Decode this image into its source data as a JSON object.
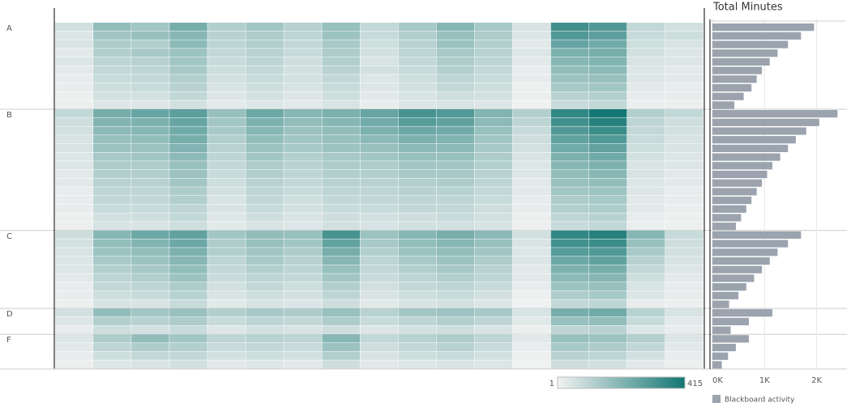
{
  "chart_data": [
    {
      "type": "heatmap",
      "colorlim": [
        1,
        415
      ],
      "colors": [
        "#f2f2f2",
        "#137773"
      ],
      "groups": [
        {
          "name": "A",
          "values": [
            [
              60,
              180,
              150,
              230,
              120,
              150,
              110,
              170,
              90,
              140,
              200,
              140,
              50,
              330,
              300,
              90,
              60
            ],
            [
              40,
              150,
              170,
              200,
              110,
              130,
              100,
              160,
              80,
              120,
              170,
              130,
              40,
              300,
              280,
              80,
              70
            ],
            [
              50,
              130,
              120,
              190,
              100,
              120,
              90,
              140,
              70,
              110,
              160,
              120,
              30,
              260,
              240,
              70,
              50
            ],
            [
              30,
              120,
              140,
              160,
              90,
              110,
              80,
              130,
              60,
              100,
              140,
              110,
              40,
              220,
              230,
              60,
              40
            ],
            [
              40,
              100,
              110,
              150,
              80,
              100,
              70,
              120,
              50,
              90,
              130,
              100,
              30,
              200,
              210,
              50,
              40
            ],
            [
              30,
              90,
              100,
              140,
              70,
              90,
              60,
              110,
              60,
              80,
              120,
              90,
              20,
              180,
              190,
              40,
              30
            ],
            [
              20,
              80,
              90,
              120,
              60,
              80,
              60,
              90,
              40,
              70,
              100,
              80,
              20,
              160,
              170,
              40,
              30
            ],
            [
              20,
              70,
              80,
              110,
              50,
              70,
              50,
              80,
              40,
              60,
              90,
              70,
              10,
              140,
              150,
              30,
              20
            ],
            [
              10,
              60,
              60,
              90,
              40,
              60,
              40,
              70,
              30,
              50,
              70,
              60,
              10,
              110,
              120,
              20,
              20
            ],
            [
              10,
              40,
              40,
              60,
              30,
              40,
              30,
              50,
              20,
              40,
              50,
              40,
              5,
              80,
              90,
              15,
              10
            ]
          ]
        },
        {
          "name": "B",
          "values": [
            [
              90,
              230,
              260,
              280,
              170,
              250,
              200,
              220,
              260,
              320,
              300,
              210,
              120,
              360,
              415,
              120,
              90
            ],
            [
              70,
              210,
              220,
              260,
              150,
              220,
              180,
              200,
              240,
              290,
              270,
              190,
              100,
              330,
              380,
              100,
              70
            ],
            [
              60,
              190,
              200,
              240,
              140,
              200,
              160,
              180,
              220,
              250,
              240,
              170,
              80,
              300,
              340,
              90,
              60
            ],
            [
              50,
              170,
              180,
              230,
              120,
              180,
              150,
              170,
              190,
              220,
              210,
              150,
              70,
              270,
              300,
              80,
              50
            ],
            [
              50,
              160,
              160,
              210,
              110,
              160,
              140,
              160,
              170,
              190,
              190,
              140,
              60,
              240,
              270,
              70,
              50
            ],
            [
              40,
              140,
              150,
              190,
              100,
              150,
              120,
              140,
              150,
              170,
              170,
              130,
              50,
              220,
              240,
              60,
              40
            ],
            [
              40,
              130,
              130,
              170,
              90,
              130,
              110,
              130,
              130,
              150,
              150,
              120,
              40,
              200,
              220,
              50,
              40
            ],
            [
              30,
              120,
              120,
              160,
              80,
              120,
              100,
              120,
              120,
              140,
              140,
              110,
              40,
              180,
              200,
              50,
              30
            ],
            [
              30,
              110,
              110,
              150,
              70,
              110,
              90,
              110,
              110,
              120,
              130,
              100,
              30,
              170,
              180,
              40,
              30
            ],
            [
              20,
              100,
              100,
              130,
              60,
              100,
              80,
              100,
              100,
              110,
              110,
              90,
              30,
              150,
              160,
              40,
              20
            ],
            [
              20,
              90,
              90,
              120,
              50,
              90,
              70,
              90,
              90,
              100,
              100,
              80,
              20,
              130,
              140,
              30,
              20
            ],
            [
              20,
              80,
              80,
              100,
              50,
              80,
              60,
              80,
              80,
              90,
              90,
              70,
              20,
              120,
              130,
              30,
              15
            ],
            [
              10,
              60,
              70,
              90,
              40,
              70,
              50,
              70,
              60,
              70,
              80,
              60,
              10,
              100,
              110,
              20,
              10
            ],
            [
              10,
              50,
              50,
              70,
              30,
              50,
              40,
              60,
              50,
              60,
              60,
              50,
              10,
              80,
              90,
              15,
              10
            ]
          ]
        },
        {
          "name": "C",
          "values": [
            [
              70,
              200,
              250,
              270,
              150,
              180,
              170,
              320,
              160,
              200,
              230,
              190,
              60,
              360,
              380,
              200,
              80
            ],
            [
              60,
              180,
              210,
              250,
              130,
              170,
              150,
              270,
              140,
              180,
              200,
              170,
              50,
              330,
              340,
              170,
              70
            ],
            [
              50,
              160,
              180,
              220,
              120,
              150,
              130,
              230,
              120,
              160,
              180,
              150,
              40,
              290,
              300,
              140,
              60
            ],
            [
              40,
              140,
              160,
              200,
              100,
              140,
              110,
              200,
              100,
              140,
              160,
              130,
              40,
              250,
              270,
              110,
              50
            ],
            [
              40,
              120,
              140,
              180,
              90,
              120,
              100,
              170,
              90,
              120,
              140,
              110,
              30,
              220,
              230,
              90,
              40
            ],
            [
              30,
              100,
              120,
              160,
              80,
              100,
              90,
              150,
              80,
              100,
              120,
              100,
              30,
              190,
              200,
              70,
              30
            ],
            [
              20,
              90,
              100,
              130,
              60,
              90,
              70,
              120,
              60,
              90,
              100,
              80,
              20,
              160,
              170,
              50,
              20
            ],
            [
              20,
              70,
              80,
              110,
              50,
              70,
              60,
              100,
              50,
              70,
              80,
              60,
              10,
              130,
              140,
              40,
              20
            ],
            [
              10,
              50,
              50,
              80,
              30,
              50,
              40,
              70,
              30,
              50,
              60,
              40,
              5,
              90,
              100,
              20,
              10
            ]
          ]
        },
        {
          "name": "D",
          "values": [
            [
              60,
              180,
              150,
              170,
              120,
              140,
              130,
              170,
              110,
              150,
              160,
              140,
              50,
              230,
              240,
              110,
              50
            ],
            [
              40,
              120,
              110,
              130,
              80,
              100,
              90,
              130,
              80,
              100,
              120,
              100,
              30,
              170,
              180,
              80,
              30
            ],
            [
              20,
              70,
              60,
              80,
              40,
              60,
              50,
              70,
              40,
              60,
              70,
              50,
              10,
              100,
              110,
              40,
              20
            ]
          ]
        },
        {
          "name": "F",
          "values": [
            [
              40,
              130,
              180,
              150,
              100,
              110,
              100,
              200,
              90,
              110,
              130,
              100,
              30,
              170,
              160,
              120,
              40
            ],
            [
              30,
              100,
              130,
              120,
              80,
              90,
              80,
              160,
              70,
              90,
              110,
              80,
              20,
              140,
              130,
              90,
              30
            ],
            [
              20,
              70,
              90,
              90,
              60,
              70,
              60,
              120,
              50,
              70,
              80,
              60,
              10,
              110,
              100,
              60,
              20
            ],
            [
              10,
              40,
              50,
              60,
              30,
              40,
              30,
              70,
              30,
              40,
              50,
              40,
              5,
              70,
              60,
              30,
              10
            ]
          ]
        }
      ]
    },
    {
      "type": "bar",
      "orientation": "horizontal",
      "title": "Total Minutes",
      "xlim": [
        0,
        2550
      ],
      "xticks": [
        {
          "value": 0,
          "label": "0K"
        },
        {
          "value": 1000,
          "label": "1K"
        },
        {
          "value": 2000,
          "label": "2K"
        }
      ],
      "grid": true,
      "series": [
        {
          "name": "Blackboard activity",
          "color": "#9aa3ae",
          "values": [
            [
              1950,
              1700,
              1450,
              1250,
              1100,
              950,
              850,
              750,
              600,
              420
            ],
            [
              2400,
              2050,
              1800,
              1600,
              1450,
              1300,
              1150,
              1050,
              950,
              850,
              750,
              650,
              550,
              450
            ],
            [
              1700,
              1450,
              1250,
              1100,
              950,
              800,
              650,
              500,
              320
            ],
            [
              1150,
              700,
              350
            ],
            [
              700,
              450,
              300,
              180
            ]
          ]
        }
      ]
    }
  ]
}
